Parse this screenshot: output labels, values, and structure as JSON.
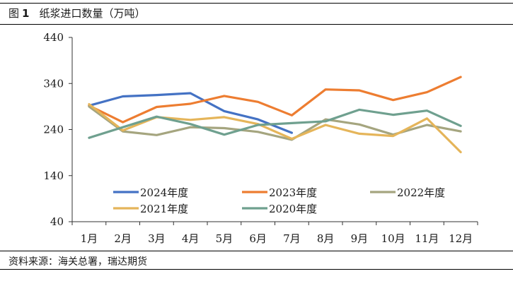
{
  "figure": {
    "label": "图",
    "number": "1",
    "title": "纸浆进口数量（万吨）"
  },
  "source": "资料来源：海关总署，瑞达期货",
  "chart_data": {
    "type": "line",
    "categories": [
      "1月",
      "2月",
      "3月",
      "4月",
      "5月",
      "6月",
      "7月",
      "8月",
      "9月",
      "10月",
      "11月",
      "12月"
    ],
    "ylim": [
      40,
      440
    ],
    "yticks": [
      40,
      140,
      240,
      340,
      440
    ],
    "grid": false,
    "legend_position": "bottom-center",
    "series": [
      {
        "name": "2024年度",
        "color": "#4472C4",
        "values": [
          292,
          312,
          315,
          319,
          280,
          262,
          233,
          null,
          null,
          null,
          null,
          null
        ]
      },
      {
        "name": "2023年度",
        "color": "#ED7D31",
        "values": [
          292,
          256,
          289,
          296,
          313,
          300,
          271,
          327,
          325,
          304,
          321,
          354
        ]
      },
      {
        "name": "2022年度",
        "color": "#A5A57F",
        "values": [
          290,
          236,
          228,
          245,
          243,
          235,
          218,
          262,
          251,
          229,
          250,
          236
        ]
      },
      {
        "name": "2021年度",
        "color": "#E5B55A",
        "values": [
          295,
          238,
          267,
          261,
          267,
          252,
          220,
          250,
          231,
          226,
          264,
          191
        ]
      },
      {
        "name": "2020年度",
        "color": "#6FA08F",
        "values": [
          222,
          245,
          268,
          252,
          229,
          250,
          254,
          258,
          283,
          272,
          281,
          248
        ]
      }
    ]
  }
}
